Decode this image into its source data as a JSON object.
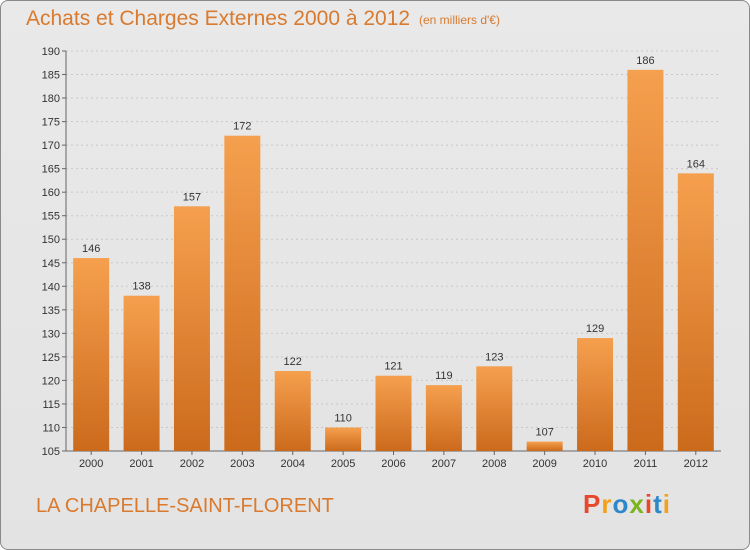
{
  "header": {
    "title": "Achats et Charges Externes 2000 à 2012",
    "unit_note": "(en milliers d'€)"
  },
  "footer": {
    "commune": "LA CHAPELLE-SAINT-FLORENT",
    "logo_letters": [
      "P",
      "r",
      "o",
      "x",
      "i",
      "t",
      "i"
    ]
  },
  "colors": {
    "accent": "#d97a2e",
    "bar_light": "#f5a04e",
    "bar_dark": "#cc6a1c",
    "logo": [
      "#e8472b",
      "#f3a11b",
      "#2e88c9",
      "#7ab51d",
      "#e8472b",
      "#2e88c9",
      "#f3a11b"
    ]
  },
  "chart_data": {
    "type": "bar",
    "title": "Achats et Charges Externes 2000 à 2012",
    "categories": [
      "2000",
      "2001",
      "2002",
      "2003",
      "2004",
      "2005",
      "2006",
      "2007",
      "2008",
      "2009",
      "2010",
      "2011",
      "2012"
    ],
    "values": [
      146,
      138,
      157,
      172,
      122,
      110,
      121,
      119,
      123,
      107,
      129,
      186,
      164
    ],
    "ylim": [
      105,
      190
    ],
    "yticks": [
      105,
      110,
      115,
      120,
      125,
      130,
      135,
      140,
      145,
      150,
      155,
      160,
      165,
      170,
      175,
      180,
      185,
      190
    ],
    "grid": true,
    "legend": "none"
  }
}
